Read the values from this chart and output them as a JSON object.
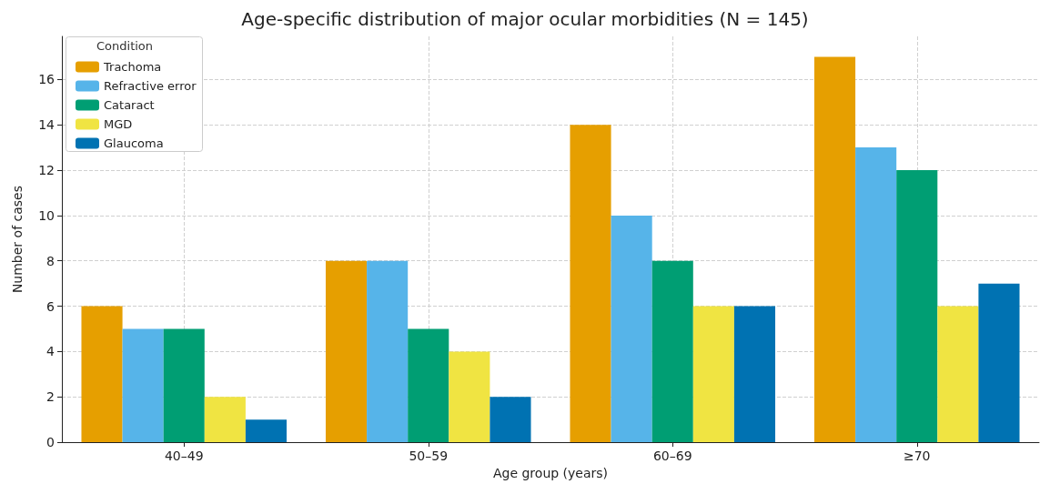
{
  "chart_data": {
    "type": "bar",
    "title": "Age-specific distribution of major ocular morbidities (N = 145)",
    "xlabel": "Age group (years)",
    "ylabel": "Number of cases",
    "legend_title": "Condition",
    "categories": [
      "40–49",
      "50–59",
      "60–69",
      "≥70"
    ],
    "series": [
      {
        "name": "Trachoma",
        "color": "#e69f00",
        "values": [
          6,
          8,
          14,
          17
        ]
      },
      {
        "name": "Refractive error",
        "color": "#56b4e9",
        "values": [
          5,
          8,
          10,
          13
        ]
      },
      {
        "name": "Cataract",
        "color": "#009e73",
        "values": [
          5,
          5,
          8,
          12
        ]
      },
      {
        "name": "MGD",
        "color": "#f0e442",
        "values": [
          2,
          4,
          6,
          6
        ]
      },
      {
        "name": "Glaucoma",
        "color": "#0072b2",
        "values": [
          1,
          2,
          6,
          7
        ]
      }
    ],
    "ylim": [
      0,
      17.9
    ],
    "yticks": [
      0,
      2,
      4,
      6,
      8,
      10,
      12,
      14,
      16
    ],
    "grid": true,
    "legend": "top left"
  }
}
